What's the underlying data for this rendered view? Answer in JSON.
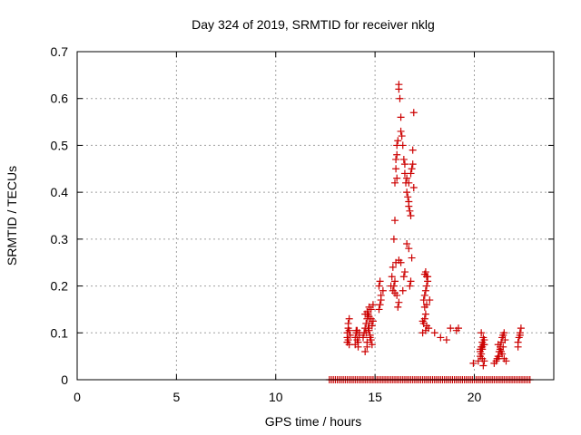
{
  "chart_data": {
    "type": "scatter",
    "title": "Day 324 of 2019, SRMTID for receiver nklg",
    "xlabel": "GPS time / hours",
    "ylabel": "SRMTID / TECUs",
    "xlim": [
      0,
      24
    ],
    "ylim": [
      0,
      0.7
    ],
    "xticks": [
      0,
      5,
      10,
      15,
      20
    ],
    "xtick_labels": [
      "0",
      "5",
      "10",
      "15",
      "20"
    ],
    "yticks": [
      0,
      0.1,
      0.2,
      0.3,
      0.4,
      0.5,
      0.6,
      0.7
    ],
    "ytick_labels": [
      "0",
      "0.1",
      "0.2",
      "0.3",
      "0.4",
      "0.5",
      "0.6",
      "0.7"
    ],
    "grid": true,
    "marker": "+",
    "color": "#cc0000",
    "zero_line": {
      "x_start": 12.7,
      "x_end": 22.8,
      "step": 0.1,
      "y": 0
    },
    "series": [
      {
        "name": "SRMTID",
        "x": [
          13.6,
          13.6,
          13.65,
          13.65,
          13.7,
          13.7,
          13.75,
          13.6,
          13.65,
          13.7,
          14.0,
          14.05,
          14.1,
          14.15,
          14.2,
          14.0,
          14.1,
          14.2,
          14.05,
          14.15,
          14.4,
          14.45,
          14.5,
          14.55,
          14.6,
          14.65,
          14.7,
          14.75,
          14.8,
          14.85,
          14.5,
          14.6,
          14.7,
          14.8,
          14.55,
          14.65,
          14.75,
          14.85,
          14.9,
          14.6,
          14.7,
          14.8,
          14.9,
          14.5,
          14.6,
          14.7,
          15.2,
          15.25,
          15.3,
          15.2,
          15.25,
          15.3,
          15.4,
          15.8,
          15.85,
          15.9,
          15.95,
          16.0,
          16.0,
          16.05,
          16.05,
          16.1,
          16.1,
          16.15,
          16.2,
          16.2,
          16.25,
          16.3,
          16.3,
          16.35,
          16.4,
          16.45,
          16.5,
          16.5,
          16.55,
          16.6,
          16.6,
          16.65,
          16.7,
          16.7,
          16.75,
          16.8,
          16.8,
          16.85,
          16.9,
          16.9,
          16.95,
          16.95,
          16.7,
          16.75,
          16.8,
          16.85,
          16.7,
          16.6,
          16.5,
          16.45,
          16.4,
          16.3,
          16.2,
          16.1,
          16.0,
          15.9,
          15.95,
          16.0,
          16.05,
          16.1,
          16.15,
          16.2,
          17.4,
          17.45,
          17.5,
          17.55,
          17.6,
          17.45,
          17.5,
          17.55,
          17.6,
          17.65,
          17.5,
          17.55,
          17.6,
          17.65,
          17.7,
          17.75,
          17.5,
          17.55,
          17.6,
          17.4,
          18.0,
          18.3,
          18.6,
          18.8,
          19.1,
          19.2,
          19.95,
          20.2,
          20.3,
          20.35,
          20.4,
          20.45,
          20.3,
          20.35,
          20.4,
          20.45,
          20.5,
          20.35,
          20.4,
          20.45,
          20.5,
          20.3,
          20.4,
          20.5,
          21.0,
          21.1,
          21.15,
          21.2,
          21.25,
          21.3,
          21.35,
          21.4,
          21.45,
          21.5,
          21.55,
          21.2,
          21.3,
          21.4,
          21.5,
          21.25,
          21.35,
          21.45,
          21.6,
          22.2,
          22.25,
          22.3,
          22.35,
          22.2,
          22.3
        ],
        "y": [
          0.09,
          0.1,
          0.11,
          0.12,
          0.13,
          0.105,
          0.095,
          0.08,
          0.085,
          0.075,
          0.09,
          0.1,
          0.105,
          0.08,
          0.1,
          0.075,
          0.085,
          0.095,
          0.105,
          0.07,
          0.09,
          0.1,
          0.11,
          0.12,
          0.13,
          0.14,
          0.105,
          0.095,
          0.085,
          0.075,
          0.06,
          0.08,
          0.12,
          0.13,
          0.1,
          0.11,
          0.09,
          0.115,
          0.125,
          0.07,
          0.135,
          0.15,
          0.16,
          0.14,
          0.145,
          0.155,
          0.15,
          0.16,
          0.18,
          0.2,
          0.21,
          0.17,
          0.19,
          0.2,
          0.22,
          0.24,
          0.3,
          0.34,
          0.42,
          0.45,
          0.47,
          0.48,
          0.5,
          0.51,
          0.62,
          0.63,
          0.6,
          0.56,
          0.53,
          0.52,
          0.5,
          0.47,
          0.46,
          0.44,
          0.42,
          0.43,
          0.4,
          0.39,
          0.38,
          0.37,
          0.36,
          0.35,
          0.44,
          0.45,
          0.46,
          0.49,
          0.57,
          0.41,
          0.42,
          0.2,
          0.21,
          0.26,
          0.28,
          0.29,
          0.23,
          0.22,
          0.19,
          0.25,
          0.255,
          0.18,
          0.185,
          0.19,
          0.2,
          0.21,
          0.25,
          0.43,
          0.155,
          0.165,
          0.1,
          0.12,
          0.13,
          0.14,
          0.16,
          0.17,
          0.18,
          0.19,
          0.2,
          0.22,
          0.225,
          0.23,
          0.22,
          0.21,
          0.11,
          0.17,
          0.155,
          0.105,
          0.115,
          0.125,
          0.1,
          0.09,
          0.085,
          0.11,
          0.105,
          0.11,
          0.035,
          0.04,
          0.06,
          0.07,
          0.08,
          0.09,
          0.05,
          0.055,
          0.065,
          0.075,
          0.085,
          0.1,
          0.045,
          0.03,
          0.04,
          0.065,
          0.07,
          0.075,
          0.035,
          0.04,
          0.045,
          0.05,
          0.06,
          0.07,
          0.08,
          0.09,
          0.095,
          0.1,
          0.085,
          0.075,
          0.065,
          0.055,
          0.045,
          0.05,
          0.06,
          0.07,
          0.04,
          0.08,
          0.09,
          0.1,
          0.11,
          0.07,
          0.095
        ]
      }
    ]
  }
}
